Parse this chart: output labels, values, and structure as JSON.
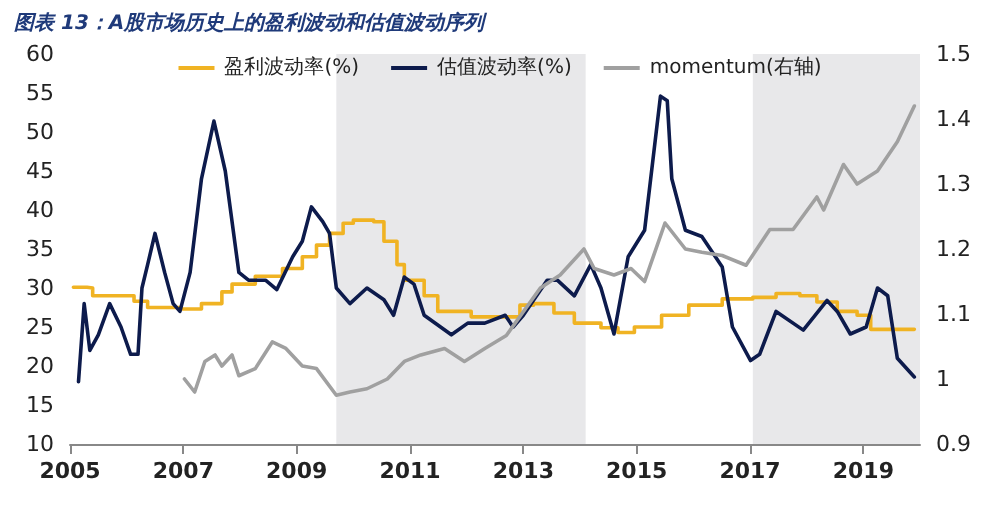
{
  "chart_data": {
    "type": "line",
    "title": "图表 13：A股市场历史上的盈利波动和估值波动序列",
    "legend": "top",
    "grid": false,
    "xlim": [
      2005,
      2020
    ],
    "xticks": [
      2005,
      2007,
      2009,
      2011,
      2013,
      2015,
      2017,
      2019
    ],
    "ylim": [
      10,
      60
    ],
    "yticks": [
      10,
      15,
      20,
      25,
      30,
      35,
      40,
      45,
      50,
      55,
      60
    ],
    "y2lim": [
      0.9,
      1.5
    ],
    "y2ticks": [
      0.9,
      1,
      1.1,
      1.2,
      1.3,
      1.4,
      1.5
    ],
    "bands": [
      {
        "axis": "x",
        "from": 2009.7,
        "to": 2014.1,
        "color": "#e8e8ea"
      },
      {
        "axis": "x",
        "from": 2017.05,
        "to": 2020,
        "color": "#e8e8ea"
      }
    ],
    "series": [
      {
        "name": "盈利波动率(%)",
        "type": "step",
        "color": "#f0b323",
        "x": [
          2005.06,
          2005.3,
          2005.4,
          2005.77,
          2006.13,
          2006.37,
          2006.96,
          2007.32,
          2007.68,
          2007.86,
          2008.27,
          2008.75,
          2009.1,
          2009.35,
          2009.58,
          2009.82,
          2010,
          2010.36,
          2010.54,
          2010.77,
          2010.9,
          2011.25,
          2011.49,
          2012.08,
          2012.62,
          2012.94,
          2013.18,
          2013.54,
          2013.9,
          2014.37,
          2014.67,
          2014.96,
          2015.44,
          2015.92,
          2016.51,
          2017.05,
          2017.46,
          2017.88,
          2018.18,
          2018.54,
          2018.89,
          2019.13,
          2019.9
        ],
        "values": [
          30.1,
          30,
          29,
          29,
          28.3,
          27.5,
          27.3,
          28,
          29.5,
          30.5,
          31.5,
          32.5,
          34,
          35.5,
          37,
          38.3,
          38.7,
          38.5,
          36,
          33,
          31,
          29,
          27,
          26.3,
          26.3,
          27.8,
          28,
          26.8,
          25.5,
          24.9,
          24.3,
          25,
          26.5,
          27.8,
          28.6,
          28.8,
          29.3,
          29,
          28.2,
          27,
          26.5,
          24.7,
          24.7
        ]
      },
      {
        "name": "估值波动率(%)",
        "color": "#0d1b4c",
        "x": [
          2005.15,
          2005.25,
          2005.35,
          2005.5,
          2005.7,
          2005.9,
          2006.07,
          2006.2,
          2006.27,
          2006.37,
          2006.5,
          2006.67,
          2006.82,
          2006.94,
          2007.12,
          2007.32,
          2007.54,
          2007.74,
          2007.98,
          2008.15,
          2008.45,
          2008.65,
          2008.93,
          2009.1,
          2009.26,
          2009.46,
          2009.58,
          2009.7,
          2009.94,
          2010.24,
          2010.54,
          2010.71,
          2010.9,
          2011.07,
          2011.25,
          2011.73,
          2012.02,
          2012.32,
          2012.68,
          2012.82,
          2013,
          2013.42,
          2013.6,
          2013.9,
          2014.19,
          2014.37,
          2014.6,
          2014.85,
          2015.14,
          2015.42,
          2015.54,
          2015.62,
          2015.86,
          2016.15,
          2016.51,
          2016.69,
          2017.01,
          2017.17,
          2017.46,
          2017.94,
          2018.36,
          2018.54,
          2018.77,
          2019.05,
          2019.25,
          2019.43,
          2019.6,
          2019.9
        ],
        "values": [
          18,
          28,
          22,
          24,
          28,
          25,
          21.5,
          21.5,
          30,
          33,
          37,
          32,
          28,
          27,
          32,
          44,
          51.4,
          45,
          32,
          31,
          31,
          29.8,
          34,
          36,
          40.4,
          38.5,
          37,
          30,
          28,
          30,
          28.5,
          26.5,
          31.4,
          30.5,
          26.5,
          24,
          25.5,
          25.5,
          26.5,
          25,
          26.5,
          31,
          31,
          29,
          33,
          30,
          24.1,
          34,
          37.4,
          54.6,
          54,
          44,
          37.4,
          36.6,
          32.7,
          25,
          20.7,
          21.5,
          27,
          24.6,
          28.4,
          27,
          24.1,
          25,
          30,
          29,
          21,
          18.6
        ]
      },
      {
        "name": "momentum(右轴)",
        "axis": "y2",
        "color": "#a0a0a0",
        "x": [
          2007.02,
          2007.2,
          2007.38,
          2007.56,
          2007.68,
          2007.86,
          2007.98,
          2008.27,
          2008.57,
          2008.81,
          2009.1,
          2009.35,
          2009.7,
          2009.94,
          2010.24,
          2010.6,
          2010.9,
          2011.19,
          2011.61,
          2011.96,
          2012.32,
          2012.7,
          2013.3,
          2013.65,
          2014.07,
          2014.25,
          2014.6,
          2014.9,
          2015.14,
          2015.5,
          2015.86,
          2016.15,
          2016.51,
          2016.93,
          2017.35,
          2017.76,
          2018.18,
          2018.3,
          2018.65,
          2018.89,
          2019.25,
          2019.6,
          2019.9
        ],
        "values": [
          1,
          0.98,
          1.027,
          1.037,
          1.02,
          1.037,
          1.005,
          1.016,
          1.057,
          1.047,
          1.02,
          1.016,
          0.975,
          0.98,
          0.985,
          1,
          1.027,
          1.037,
          1.047,
          1.027,
          1.047,
          1.067,
          1.14,
          1.16,
          1.2,
          1.17,
          1.16,
          1.17,
          1.15,
          1.24,
          1.2,
          1.195,
          1.19,
          1.175,
          1.23,
          1.23,
          1.28,
          1.26,
          1.33,
          1.3,
          1.32,
          1.365,
          1.42
        ]
      }
    ]
  }
}
